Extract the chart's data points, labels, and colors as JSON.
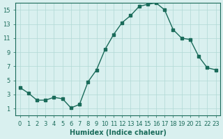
{
  "x": [
    0,
    1,
    2,
    3,
    4,
    5,
    6,
    7,
    8,
    9,
    10,
    11,
    12,
    13,
    14,
    15,
    16,
    17,
    18,
    19,
    20,
    21,
    22,
    23
  ],
  "y": [
    4.0,
    3.2,
    2.2,
    2.2,
    2.6,
    2.4,
    1.1,
    1.6,
    4.8,
    6.5,
    9.4,
    11.5,
    13.2,
    14.2,
    15.5,
    15.8,
    16.0,
    15.0,
    12.2,
    11.0,
    10.8,
    8.4,
    6.8,
    6.5
  ],
  "line_color": "#1a6b5a",
  "marker": "s",
  "marker_size": 3,
  "bg_color": "#d9f0ef",
  "grid_color": "#b0d8d5",
  "xlabel": "Humidex (Indice chaleur)",
  "ylabel": "",
  "xlim": [
    -0.5,
    23.5
  ],
  "ylim": [
    0,
    16
  ],
  "yticks": [
    1,
    3,
    5,
    7,
    9,
    11,
    13,
    15
  ],
  "xticks": [
    0,
    1,
    2,
    3,
    4,
    5,
    6,
    7,
    8,
    9,
    10,
    11,
    12,
    13,
    14,
    15,
    16,
    17,
    18,
    19,
    20,
    21,
    22,
    23
  ],
  "font_color": "#1a6b5a",
  "tick_fontsize": 6,
  "label_fontsize": 7
}
